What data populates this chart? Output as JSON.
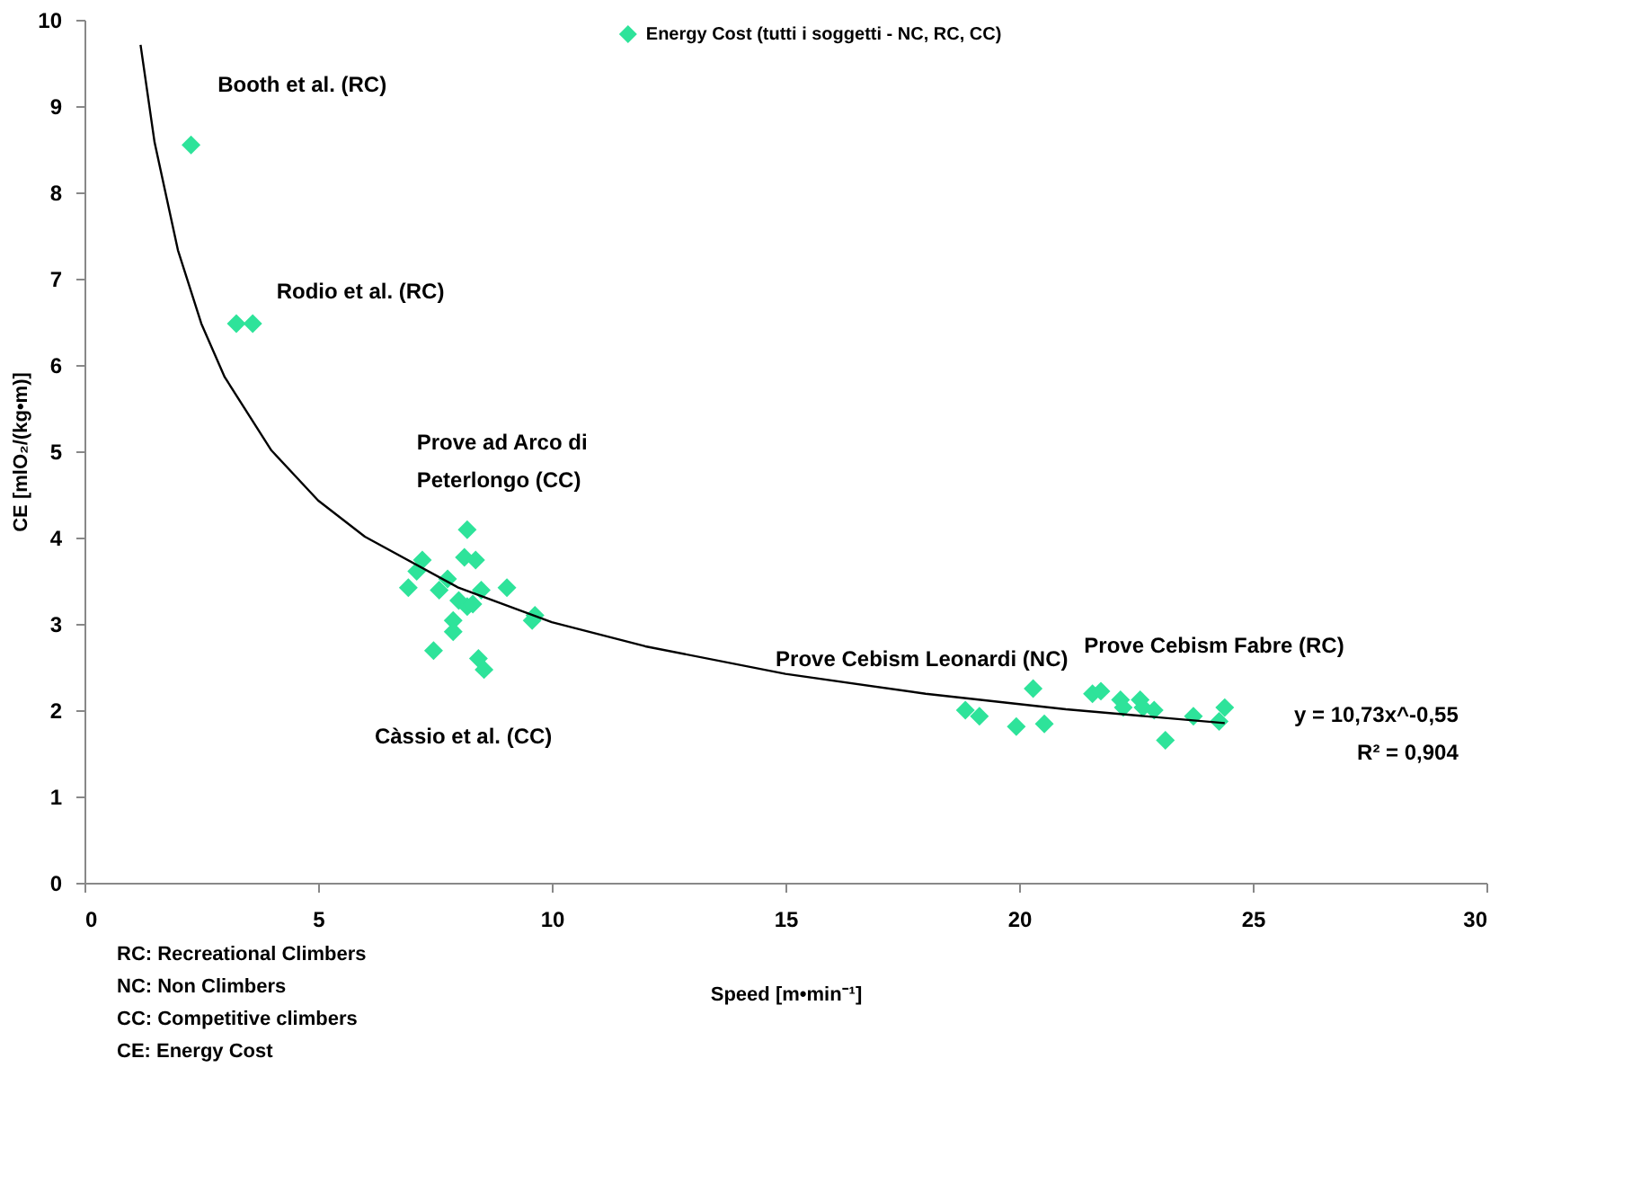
{
  "chart_data": {
    "type": "scatter",
    "xlabel": "Speed [m•min⁻¹]",
    "ylabel": "CE [mlO₂/(kg•m)]",
    "xlim": [
      0,
      30
    ],
    "xticks": [
      0,
      5,
      10,
      15,
      20,
      25,
      30
    ],
    "ylim": [
      0,
      10
    ],
    "yticks": [
      0,
      1,
      2,
      3,
      4,
      5,
      6,
      7,
      8,
      9,
      10
    ],
    "grid": false,
    "legend": "top",
    "series": [
      {
        "name": "Energy Cost (tutti i soggetti - NC, RC, CC)",
        "marker": "diamond",
        "color": "#2ee39a",
        "x": [
          2.28,
          3.25,
          3.6,
          8.19,
          7.23,
          7.11,
          6.93,
          8.13,
          8.37,
          7.59,
          7.77,
          8.01,
          8.19,
          7.89,
          7.89,
          8.49,
          9.04,
          9.64,
          9.58,
          7.47,
          8.43,
          8.55,
          8.31,
          18.85,
          19.15,
          19.94,
          20.54,
          20.3,
          21.57,
          21.75,
          22.17,
          22.23,
          22.59,
          22.65,
          22.89,
          23.13,
          23.73,
          24.28,
          24.4
        ],
        "values": [
          8.55,
          6.48,
          6.48,
          4.09,
          3.74,
          3.61,
          3.42,
          3.77,
          3.74,
          3.39,
          3.52,
          3.27,
          3.2,
          3.04,
          2.91,
          3.39,
          3.42,
          3.1,
          3.04,
          2.69,
          2.6,
          2.47,
          3.23,
          2.0,
          1.93,
          1.81,
          1.84,
          2.25,
          2.19,
          2.22,
          2.12,
          2.03,
          2.12,
          2.03,
          2.0,
          1.65,
          1.93,
          1.87,
          2.03
        ]
      },
      {
        "type": "line",
        "color": "#000000",
        "x": [
          1.2,
          1.5,
          2,
          2.5,
          3,
          4,
          5,
          6,
          8,
          10,
          12,
          15,
          18,
          21,
          24.4
        ],
        "values": [
          9.71,
          8.58,
          7.33,
          6.48,
          5.86,
          5.01,
          4.43,
          4.01,
          3.42,
          3.02,
          2.74,
          2.42,
          2.19,
          2.01,
          1.85
        ]
      }
    ],
    "annotations": [
      "Booth et al. (RC)",
      "Rodio et al. (RC)",
      "Prove ad Arco di\nPeterlongo (CC)",
      "Càssio et al. (CC)",
      "Prove Cebism Leonardi (NC)",
      "Prove Cebism Fabre (RC)",
      "y = 10,73x^-0,55\nR² = 0,904",
      "RC: Recreational Climbers",
      "NC: Non Climbers",
      "CC: Competitive climbers",
      "CE: Energy Cost"
    ]
  }
}
